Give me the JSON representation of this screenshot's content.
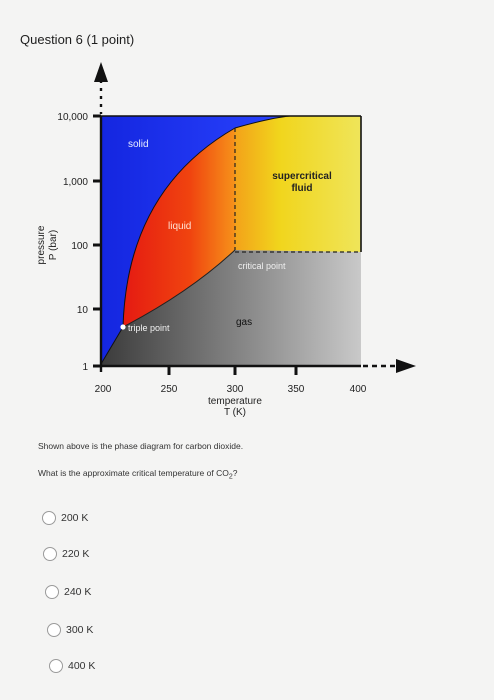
{
  "header": {
    "title": "Question 6",
    "points": "(1 point)"
  },
  "chart_data": {
    "type": "phase-diagram",
    "title": "",
    "xlabel_line1": "temperature",
    "xlabel_line2": "T (K)",
    "ylabel_line1": "pressure",
    "ylabel_line2": "P (bar)",
    "x_ticks": [
      "200",
      "250",
      "300",
      "350",
      "400"
    ],
    "y_ticks": [
      "1",
      "10",
      "100",
      "1,000",
      "10,000"
    ],
    "x_range": [
      185,
      400
    ],
    "y_range_log": [
      1,
      10000
    ],
    "regions": [
      {
        "name": "solid",
        "label": "solid",
        "color": "#1e2fe6"
      },
      {
        "name": "liquid",
        "label": "liquid",
        "color": "#ee2a16"
      },
      {
        "name": "supercritical-fluid",
        "label_line1": "supercritical",
        "label_line2": "fluid",
        "color": "#f0dc1c"
      },
      {
        "name": "gas",
        "label": "gas",
        "color": "#6a6a6a"
      }
    ],
    "points": {
      "triple_point": {
        "label": "triple point",
        "T": 216.6,
        "P": 5.2
      },
      "critical_point": {
        "label": "critical point",
        "T": 304,
        "P": 74
      }
    }
  },
  "prompt": "Shown above is the phase diagram for carbon dioxide.",
  "question": {
    "text": "What is the approximate critical temperature of CO",
    "sub": "2",
    "end": "?"
  },
  "options": [
    {
      "label": "200 K"
    },
    {
      "label": "220 K"
    },
    {
      "label": "240 K"
    },
    {
      "label": "300 K"
    },
    {
      "label": "400 K"
    }
  ]
}
